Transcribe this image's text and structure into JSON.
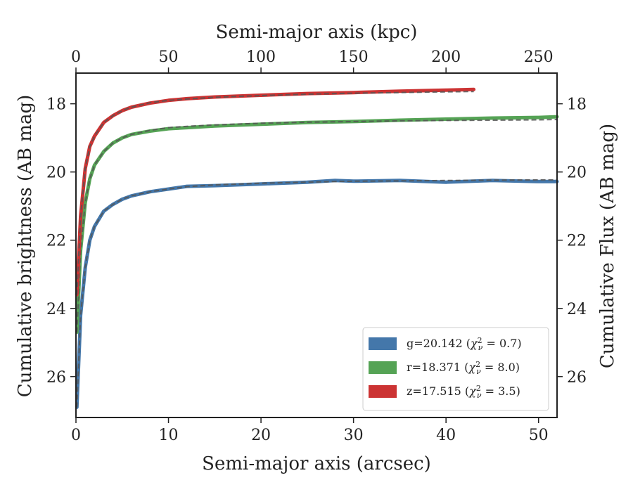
{
  "chart_data": {
    "type": "line",
    "xlabel": "Semi-major axis (arcsec)",
    "x2label": "Semi-major axis (kpc)",
    "ylabel": "Cumulative brightness (AB mag)",
    "y2label": "Cumulative Flux (AB mag)",
    "xlim": [
      0,
      52
    ],
    "x2lim": [
      0,
      260
    ],
    "ylim": [
      27.2,
      17.1
    ],
    "y_inverted": true,
    "xticks": [
      0,
      10,
      20,
      30,
      40,
      50
    ],
    "x2ticks": [
      0,
      50,
      100,
      150,
      200,
      250
    ],
    "yticks": [
      18,
      20,
      22,
      24,
      26
    ],
    "grid": false,
    "legend_position": "lower-right",
    "series": [
      {
        "name": "g=20.142",
        "chi2": "0.7",
        "color": "#4477aa",
        "x": [
          0.1,
          0.5,
          1,
          1.5,
          2,
          3,
          4,
          5,
          6,
          8,
          10,
          12,
          15,
          20,
          25,
          28,
          30,
          35,
          40,
          45,
          50,
          52
        ],
        "y": [
          26.9,
          24.2,
          22.8,
          22.0,
          21.6,
          21.15,
          20.95,
          20.8,
          20.7,
          20.58,
          20.5,
          20.42,
          20.4,
          20.35,
          20.3,
          20.25,
          20.27,
          20.25,
          20.3,
          20.25,
          20.28,
          20.28
        ],
        "fit_y": [
          26.9,
          24.2,
          22.8,
          22.0,
          21.6,
          21.15,
          20.95,
          20.8,
          20.7,
          20.58,
          20.5,
          20.43,
          20.38,
          20.33,
          20.3,
          20.28,
          20.27,
          20.26,
          20.25,
          20.24,
          20.23,
          20.23
        ]
      },
      {
        "name": "r=18.371",
        "chi2": "8.0",
        "color": "#55a355",
        "x": [
          0.1,
          0.5,
          1,
          1.5,
          2,
          3,
          4,
          5,
          6,
          8,
          10,
          12,
          15,
          20,
          25,
          30,
          35,
          40,
          45,
          50,
          52
        ],
        "y": [
          24.7,
          22.3,
          20.9,
          20.2,
          19.8,
          19.4,
          19.15,
          19.0,
          18.9,
          18.8,
          18.73,
          18.7,
          18.65,
          18.6,
          18.55,
          18.52,
          18.48,
          18.45,
          18.42,
          18.4,
          18.38
        ],
        "fit_y": [
          24.7,
          22.3,
          20.9,
          20.2,
          19.8,
          19.4,
          19.15,
          19.0,
          18.9,
          18.78,
          18.7,
          18.66,
          18.62,
          18.57,
          18.54,
          18.52,
          18.5,
          18.49,
          18.48,
          18.47,
          18.46
        ]
      },
      {
        "name": "z=17.515",
        "chi2": "3.5",
        "color": "#cc3333",
        "x": [
          0.1,
          0.5,
          1,
          1.5,
          2,
          3,
          4,
          5,
          6,
          8,
          10,
          12,
          15,
          20,
          25,
          30,
          35,
          40,
          43
        ],
        "y": [
          23.6,
          21.3,
          19.9,
          19.25,
          18.95,
          18.55,
          18.35,
          18.2,
          18.1,
          17.98,
          17.9,
          17.85,
          17.8,
          17.75,
          17.7,
          17.67,
          17.63,
          17.6,
          17.58
        ],
        "fit_y": [
          23.6,
          21.3,
          19.9,
          19.25,
          18.95,
          18.55,
          18.35,
          18.2,
          18.1,
          17.97,
          17.9,
          17.86,
          17.81,
          17.76,
          17.72,
          17.69,
          17.67,
          17.65,
          17.64
        ]
      }
    ]
  }
}
